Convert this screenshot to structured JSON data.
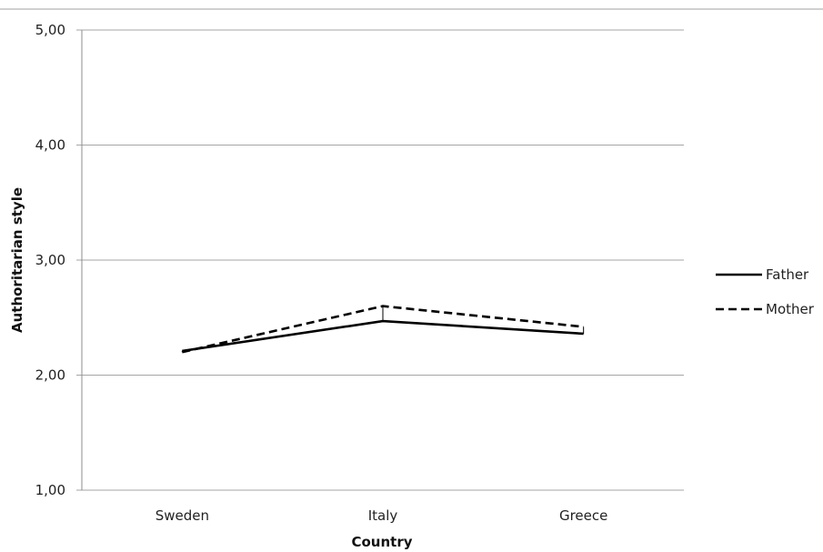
{
  "chart_data": {
    "type": "line",
    "title": "",
    "xlabel": "Country",
    "ylabel": "Authoritarian style",
    "categories": [
      "Sweden",
      "Italy",
      "Greece"
    ],
    "ylim": [
      1,
      5
    ],
    "yticks": [
      1,
      2,
      3,
      4,
      5
    ],
    "ytick_labels": [
      "1,00",
      "2,00",
      "3,00",
      "4,00",
      "5,00"
    ],
    "grid": true,
    "legend_position": "right",
    "series": [
      {
        "name": "Father",
        "values": [
          2.21,
          2.47,
          2.36
        ],
        "dash": "solid",
        "color": "#000000"
      },
      {
        "name": "Mother",
        "values": [
          2.2,
          2.6,
          2.42
        ],
        "dash": "dashed",
        "color": "#000000"
      }
    ]
  }
}
